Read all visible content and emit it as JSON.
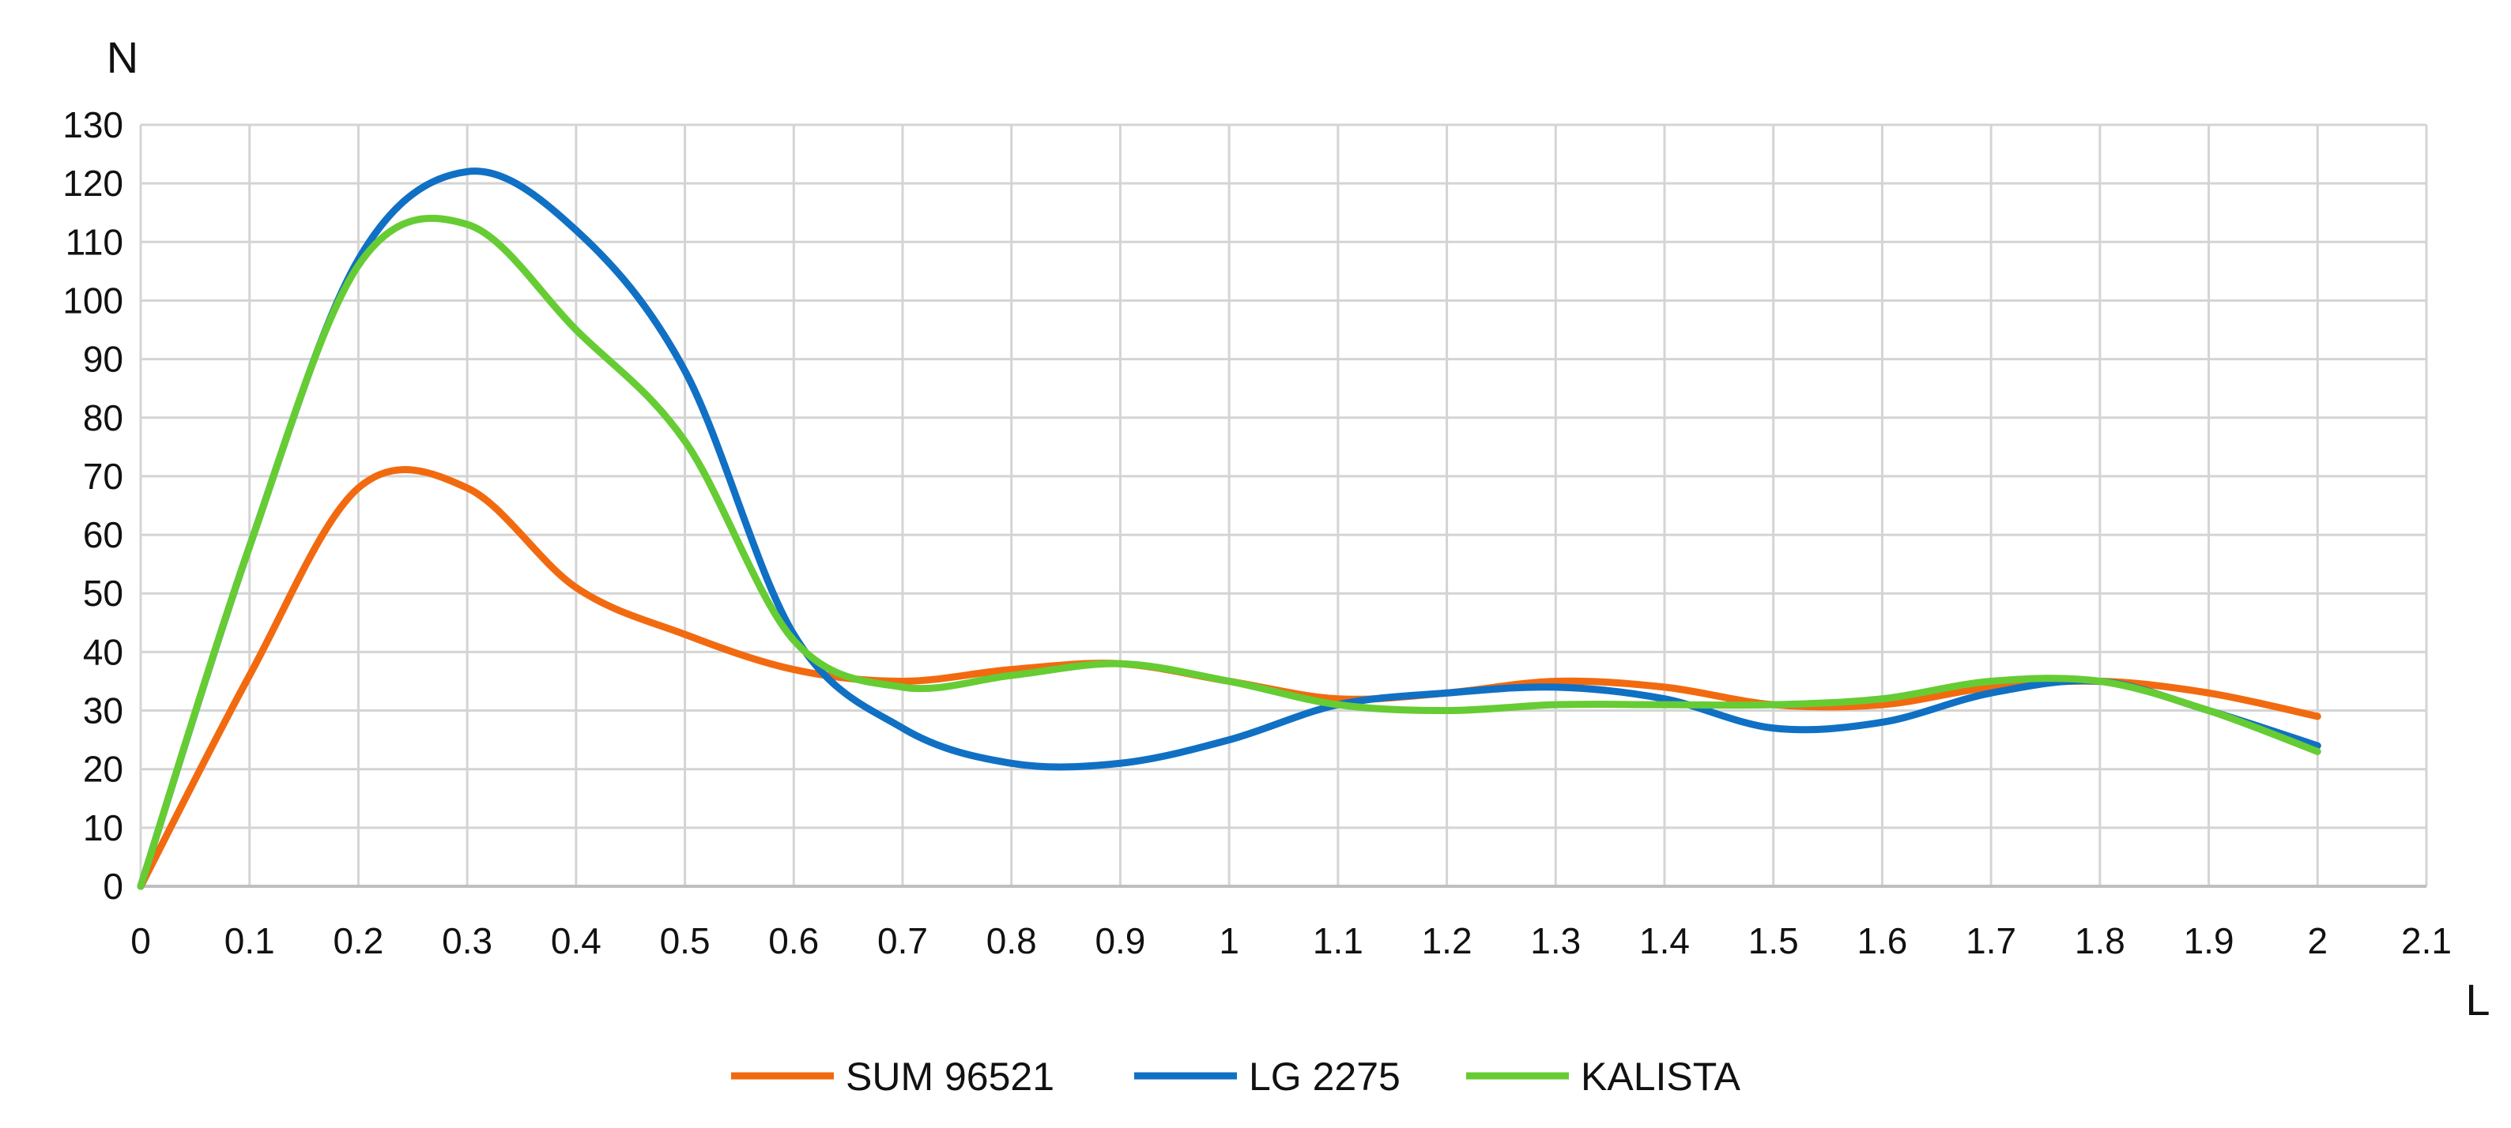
{
  "chart_data": {
    "type": "line",
    "xlabel": "L",
    "ylabel": "N",
    "xlim": [
      0,
      2.1
    ],
    "ylim": [
      0,
      130
    ],
    "x_ticks": [
      "0",
      "0.1",
      "0.2",
      "0.3",
      "0.4",
      "0.5",
      "0.6",
      "0.7",
      "0.8",
      "0.9",
      "1",
      "1.1",
      "1.2",
      "1.3",
      "1.4",
      "1.5",
      "1.6",
      "1.7",
      "1.8",
      "1.9",
      "2",
      "2.1"
    ],
    "y_ticks": [
      "0",
      "10",
      "20",
      "30",
      "40",
      "50",
      "60",
      "70",
      "80",
      "90",
      "100",
      "110",
      "120",
      "130"
    ],
    "grid": true,
    "smooth": true,
    "legend_position": "bottom",
    "x": [
      0,
      0.1,
      0.2,
      0.3,
      0.4,
      0.5,
      0.6,
      0.7,
      0.8,
      0.9,
      1.0,
      1.1,
      1.2,
      1.3,
      1.4,
      1.5,
      1.6,
      1.7,
      1.8,
      1.9,
      2.0
    ],
    "series": [
      {
        "name": "SUM 96521",
        "color": "#f26a10",
        "values": [
          0,
          36,
          68,
          68,
          51,
          43,
          37,
          35,
          37,
          38,
          35,
          32,
          33,
          35,
          34,
          31,
          31,
          34,
          35,
          33,
          29
        ]
      },
      {
        "name": "LG 2275",
        "color": "#1070c4",
        "values": [
          0,
          58,
          107,
          122,
          112,
          88,
          43,
          27,
          21,
          21,
          25,
          31,
          33,
          34,
          32,
          27,
          28,
          33,
          35,
          30,
          24
        ]
      },
      {
        "name": "KALISTA",
        "color": "#66cc33",
        "values": [
          0,
          58,
          106,
          113,
          95,
          76,
          42,
          34,
          36,
          38,
          35,
          31,
          30,
          31,
          31,
          31,
          32,
          35,
          35,
          30,
          23
        ]
      }
    ]
  }
}
